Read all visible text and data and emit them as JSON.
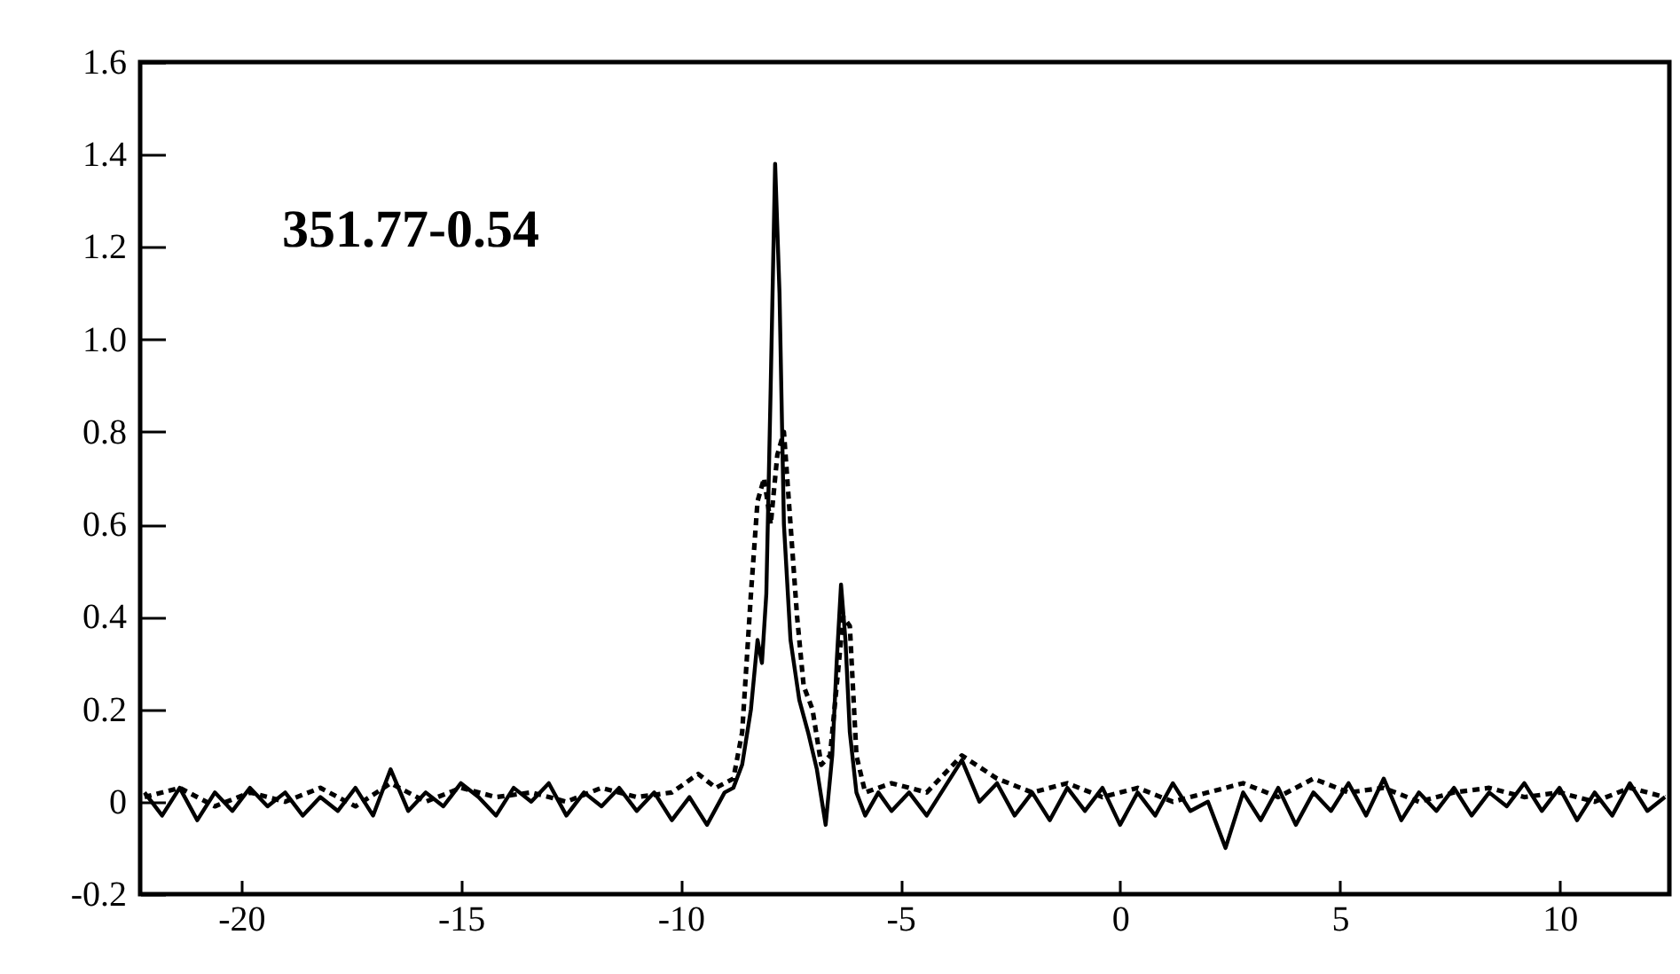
{
  "chart_data": {
    "type": "line",
    "annotations": [
      "351.77-0.54"
    ],
    "xlim": [
      -22.3,
      12.5
    ],
    "xticks": [
      -20,
      -15,
      -10,
      -5,
      0,
      5,
      10
    ],
    "ylim": [
      -0.2,
      1.6
    ],
    "yticks": [
      -0.2,
      0,
      0.2,
      0.4,
      0.6,
      0.8,
      {
        "value": 1,
        "label": "1.0"
      },
      1.2,
      1.4,
      1.6
    ],
    "grid": false,
    "marker": "none",
    "series": [
      {
        "color": "#000000",
        "line_style": "solid",
        "x": [
          -22.2,
          -21.8,
          -21.4,
          -21.0,
          -20.6,
          -20.2,
          -19.8,
          -19.4,
          -19.0,
          -18.6,
          -18.2,
          -17.8,
          -17.4,
          -17.0,
          -16.6,
          -16.2,
          -15.8,
          -15.4,
          -15.0,
          -14.6,
          -14.2,
          -13.8,
          -13.4,
          -13.0,
          -12.6,
          -12.2,
          -11.8,
          -11.4,
          -11.0,
          -10.6,
          -10.2,
          -9.8,
          -9.4,
          -9.0,
          -8.8,
          -8.6,
          -8.4,
          -8.25,
          -8.15,
          -8.05,
          -7.95,
          -7.85,
          -7.75,
          -7.65,
          -7.5,
          -7.3,
          -7.1,
          -6.9,
          -6.7,
          -6.55,
          -6.45,
          -6.35,
          -6.25,
          -6.15,
          -6.0,
          -5.8,
          -5.5,
          -5.2,
          -4.8,
          -4.4,
          -4.0,
          -3.6,
          -3.2,
          -2.8,
          -2.4,
          -2.0,
          -1.6,
          -1.2,
          -0.8,
          -0.4,
          0,
          0.4,
          0.8,
          1.2,
          1.6,
          2.0,
          2.4,
          2.8,
          3.2,
          3.6,
          4.0,
          4.4,
          4.8,
          5.2,
          5.6,
          6.0,
          6.4,
          6.8,
          7.2,
          7.6,
          8.0,
          8.4,
          8.8,
          9.2,
          9.6,
          10.0,
          10.4,
          10.8,
          11.2,
          11.6,
          12.0,
          12.4
        ],
        "values": [
          0.02,
          -0.03,
          0.03,
          -0.04,
          0.02,
          -0.02,
          0.03,
          -0.01,
          0.02,
          -0.03,
          0.01,
          -0.02,
          0.03,
          -0.03,
          0.07,
          -0.02,
          0.02,
          -0.01,
          0.04,
          0.01,
          -0.03,
          0.03,
          0,
          0.04,
          -0.03,
          0.02,
          -0.01,
          0.03,
          -0.02,
          0.02,
          -0.04,
          0.01,
          -0.05,
          0.02,
          0.03,
          0.08,
          0.2,
          0.35,
          0.3,
          0.45,
          0.9,
          1.38,
          1.1,
          0.6,
          0.35,
          0.22,
          0.15,
          0.07,
          -0.05,
          0.1,
          0.3,
          0.47,
          0.35,
          0.15,
          0.02,
          -0.03,
          0.02,
          -0.02,
          0.02,
          -0.03,
          0.03,
          0.09,
          0,
          0.04,
          -0.03,
          0.02,
          -0.04,
          0.03,
          -0.02,
          0.03,
          -0.05,
          0.02,
          -0.03,
          0.04,
          -0.02,
          0,
          -0.1,
          0.02,
          -0.04,
          0.03,
          -0.05,
          0.02,
          -0.02,
          0.04,
          -0.03,
          0.05,
          -0.04,
          0.02,
          -0.02,
          0.03,
          -0.03,
          0.02,
          -0.01,
          0.04,
          -0.02,
          0.03,
          -0.04,
          0.02,
          -0.03,
          0.04,
          -0.02,
          0.01
        ]
      },
      {
        "color": "#000000",
        "line_style": "dashed",
        "x": [
          -22.2,
          -21.4,
          -20.6,
          -19.8,
          -19.0,
          -18.2,
          -17.4,
          -16.6,
          -15.8,
          -15.0,
          -14.2,
          -13.4,
          -12.6,
          -11.8,
          -11.0,
          -10.2,
          -9.6,
          -9.2,
          -8.8,
          -8.6,
          -8.4,
          -8.25,
          -8.1,
          -7.95,
          -7.8,
          -7.65,
          -7.5,
          -7.35,
          -7.2,
          -7.0,
          -6.8,
          -6.6,
          -6.45,
          -6.3,
          -6.15,
          -6.0,
          -5.8,
          -5.2,
          -4.4,
          -3.6,
          -2.8,
          -2.0,
          -1.2,
          -0.4,
          0.4,
          1.2,
          2.0,
          2.8,
          3.6,
          4.4,
          5.2,
          6.0,
          6.8,
          7.6,
          8.4,
          9.2,
          10.0,
          10.8,
          11.6,
          12.4
        ],
        "values": [
          0.01,
          0.03,
          -0.01,
          0.02,
          0,
          0.03,
          -0.01,
          0.04,
          0,
          0.03,
          0.01,
          0.02,
          0,
          0.03,
          0.01,
          0.02,
          0.06,
          0.03,
          0.05,
          0.15,
          0.45,
          0.65,
          0.7,
          0.6,
          0.75,
          0.8,
          0.6,
          0.4,
          0.25,
          0.2,
          0.08,
          0.1,
          0.25,
          0.4,
          0.38,
          0.1,
          0.02,
          0.04,
          0.02,
          0.1,
          0.05,
          0.02,
          0.04,
          0.01,
          0.03,
          0,
          0.02,
          0.04,
          0.01,
          0.05,
          0.02,
          0.03,
          0,
          0.02,
          0.03,
          0.01,
          0.02,
          0,
          0.03,
          0.01
        ]
      }
    ]
  }
}
